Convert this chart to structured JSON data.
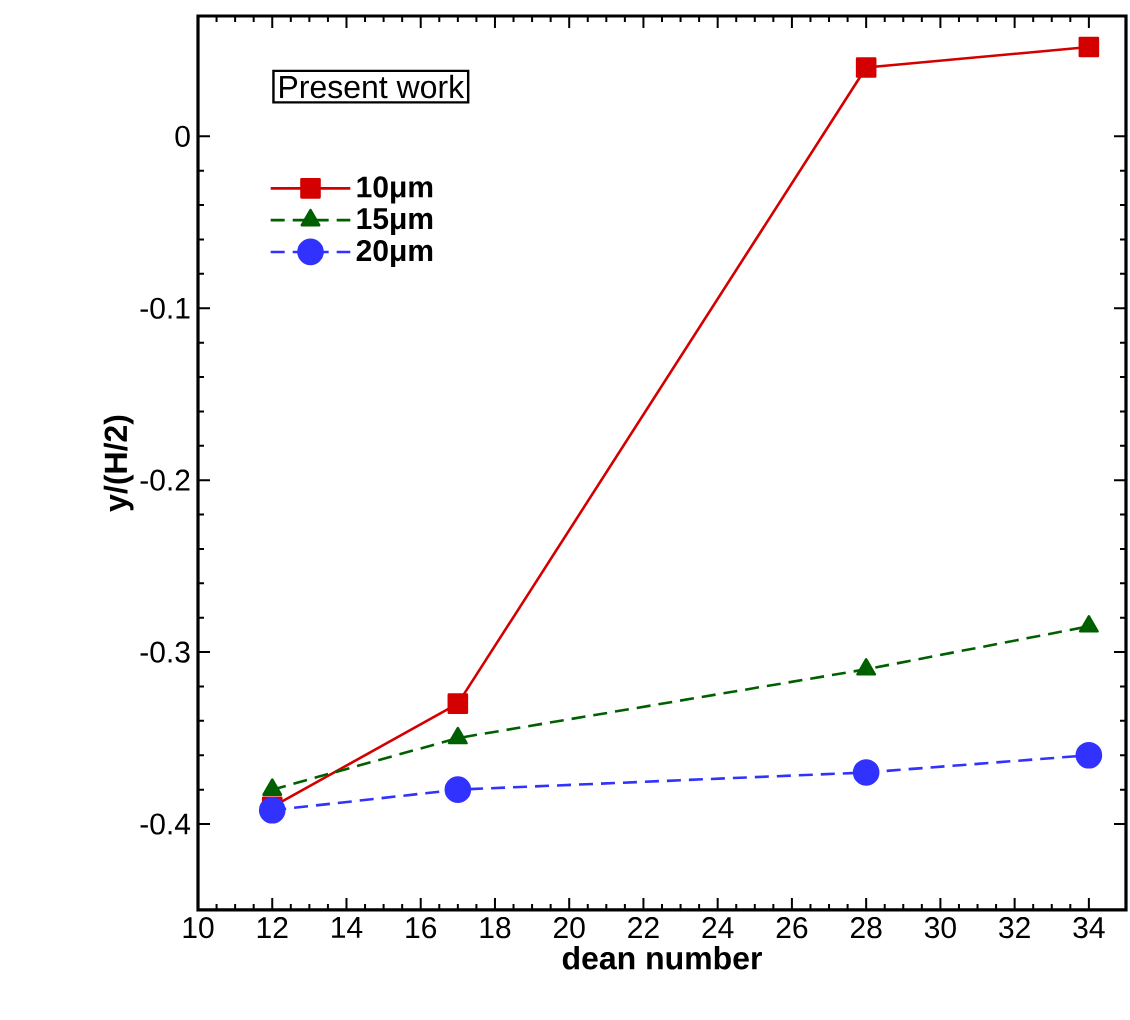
{
  "chart_data": {
    "type": "line",
    "xlabel": "dean number",
    "ylabel": "y/(H/2)",
    "annotations": [
      "Present work"
    ],
    "x": [
      12,
      17,
      28,
      34
    ],
    "series": [
      {
        "name": "10μm",
        "color": "#d40000",
        "values": [
          -0.39,
          -0.33,
          0.04,
          0.052
        ],
        "marker": "square",
        "line_style": "solid"
      },
      {
        "name": "15μm",
        "color": "#006000",
        "values": [
          -0.38,
          -0.35,
          -0.31,
          -0.285
        ],
        "marker": "triangle",
        "line_style": "dashed"
      },
      {
        "name": "20μm",
        "color": "#3232ff",
        "values": [
          -0.392,
          -0.38,
          -0.37,
          -0.36
        ],
        "marker": "circle",
        "line_style": "dashed"
      }
    ],
    "xlim": [
      10,
      35
    ],
    "ylim": [
      -0.45,
      0.07
    ],
    "xticks": [
      10,
      12,
      14,
      16,
      18,
      20,
      22,
      24,
      26,
      28,
      30,
      32,
      34
    ],
    "yticks": [
      0,
      -0.1,
      -0.2,
      -0.3,
      -0.4
    ],
    "grid": false,
    "legend": "top left"
  }
}
